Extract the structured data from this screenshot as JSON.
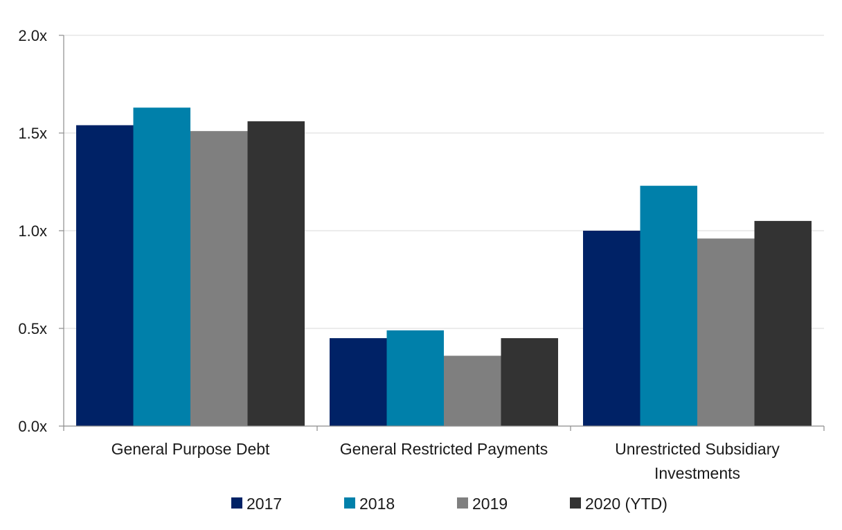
{
  "chart_data": {
    "type": "bar",
    "title": "",
    "xlabel": "",
    "ylabel": "",
    "ylim": [
      0,
      2.0
    ],
    "y_ticks": [
      {
        "value": 0.0,
        "label": "0.0x"
      },
      {
        "value": 0.5,
        "label": "0.5x"
      },
      {
        "value": 1.0,
        "label": "1.0x"
      },
      {
        "value": 1.5,
        "label": "1.5x"
      },
      {
        "value": 2.0,
        "label": "2.0x"
      }
    ],
    "grid": true,
    "legend_position": "bottom",
    "categories": [
      {
        "lines": [
          "General Purpose Debt"
        ]
      },
      {
        "lines": [
          "General Restricted Payments"
        ]
      },
      {
        "lines": [
          "Unrestricted Subsidiary",
          "Investments"
        ]
      }
    ],
    "series": [
      {
        "name": "2017",
        "color": "#002266",
        "values": [
          1.54,
          0.45,
          1.0
        ]
      },
      {
        "name": "2018",
        "color": "#0080aa",
        "values": [
          1.63,
          0.49,
          1.23
        ]
      },
      {
        "name": "2019",
        "color": "#7f7f7f",
        "values": [
          1.51,
          0.36,
          0.96
        ]
      },
      {
        "name": "2020 (YTD)",
        "color": "#333333",
        "values": [
          1.56,
          0.45,
          1.05
        ]
      }
    ]
  }
}
